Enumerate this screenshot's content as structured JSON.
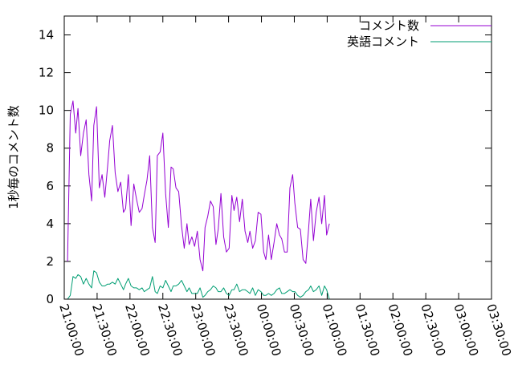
{
  "chart_data": {
    "type": "line",
    "title": "",
    "xlabel": "",
    "ylabel": "1秒毎のコメント数",
    "grid": false,
    "legend_position": "top-right",
    "x_start": "21:00:00",
    "x_end": "03:30:00",
    "xlim": [
      "21:00:00",
      "03:30:00"
    ],
    "ylim": [
      0,
      15
    ],
    "x_ticks": [
      "21:00:00",
      "21:30:00",
      "22:00:00",
      "22:30:00",
      "23:00:00",
      "23:30:00",
      "00:00:00",
      "00:30:00",
      "01:00:00",
      "01:30:00",
      "02:00:00",
      "02:30:00",
      "03:00:00",
      "03:30:00"
    ],
    "y_ticks": [
      "0",
      "2",
      "4",
      "6",
      "8",
      "10",
      "12",
      "14"
    ],
    "y_tick_values": [
      0,
      2,
      4,
      6,
      8,
      10,
      12,
      14
    ],
    "series": [
      {
        "name": "コメント数",
        "color": "#9400d3",
        "points": [
          [
            "21:03:00",
            2.0
          ],
          [
            "21:05:30",
            9.8
          ],
          [
            "21:08:00",
            10.5
          ],
          [
            "21:10:30",
            8.8
          ],
          [
            "21:12:30",
            10.1
          ],
          [
            "21:15:00",
            7.6
          ],
          [
            "21:17:30",
            8.8
          ],
          [
            "21:20:00",
            9.5
          ],
          [
            "21:22:30",
            6.6
          ],
          [
            "21:25:00",
            5.2
          ],
          [
            "21:27:00",
            9.2
          ],
          [
            "21:29:30",
            10.2
          ],
          [
            "21:32:00",
            5.9
          ],
          [
            "21:34:30",
            6.6
          ],
          [
            "21:37:00",
            5.4
          ],
          [
            "21:39:30",
            7.0
          ],
          [
            "21:41:30",
            8.4
          ],
          [
            "21:44:00",
            9.2
          ],
          [
            "21:46:30",
            6.7
          ],
          [
            "21:49:00",
            5.7
          ],
          [
            "21:51:30",
            6.2
          ],
          [
            "21:54:00",
            4.6
          ],
          [
            "21:56:00",
            4.8
          ],
          [
            "21:58:30",
            6.6
          ],
          [
            "22:01:00",
            3.9
          ],
          [
            "22:03:30",
            6.1
          ],
          [
            "22:06:00",
            5.3
          ],
          [
            "22:08:30",
            4.6
          ],
          [
            "22:11:00",
            4.8
          ],
          [
            "22:13:00",
            5.5
          ],
          [
            "22:15:30",
            6.3
          ],
          [
            "22:18:00",
            7.6
          ],
          [
            "22:20:30",
            3.8
          ],
          [
            "22:23:00",
            3.0
          ],
          [
            "22:25:00",
            7.6
          ],
          [
            "22:27:30",
            7.8
          ],
          [
            "22:30:00",
            8.8
          ],
          [
            "22:32:30",
            5.6
          ],
          [
            "22:35:00",
            3.8
          ],
          [
            "22:37:30",
            7.0
          ],
          [
            "22:39:30",
            6.9
          ],
          [
            "22:42:00",
            5.9
          ],
          [
            "22:44:30",
            5.7
          ],
          [
            "22:47:00",
            3.9
          ],
          [
            "22:49:30",
            2.7
          ],
          [
            "22:52:00",
            4.0
          ],
          [
            "22:54:00",
            2.9
          ],
          [
            "22:56:30",
            3.3
          ],
          [
            "22:59:00",
            2.8
          ],
          [
            "23:01:30",
            3.6
          ],
          [
            "23:04:00",
            2.1
          ],
          [
            "23:06:30",
            1.5
          ],
          [
            "23:08:30",
            3.8
          ],
          [
            "23:11:00",
            4.4
          ],
          [
            "23:13:30",
            5.2
          ],
          [
            "23:16:00",
            4.9
          ],
          [
            "23:18:30",
            2.9
          ],
          [
            "23:20:30",
            3.7
          ],
          [
            "23:23:00",
            5.6
          ],
          [
            "23:25:30",
            3.3
          ],
          [
            "23:28:00",
            2.5
          ],
          [
            "23:30:30",
            2.7
          ],
          [
            "23:33:00",
            5.5
          ],
          [
            "23:35:00",
            4.7
          ],
          [
            "23:37:30",
            5.4
          ],
          [
            "23:40:00",
            4.1
          ],
          [
            "23:42:30",
            5.3
          ],
          [
            "23:45:00",
            3.6
          ],
          [
            "23:47:30",
            3.0
          ],
          [
            "23:49:30",
            3.6
          ],
          [
            "23:52:00",
            2.7
          ],
          [
            "23:54:30",
            3.1
          ],
          [
            "23:57:00",
            4.6
          ],
          [
            "23:59:30",
            4.5
          ],
          [
            "00:02:00",
            2.5
          ],
          [
            "00:04:00",
            2.1
          ],
          [
            "00:06:30",
            3.4
          ],
          [
            "00:09:00",
            2.1
          ],
          [
            "00:11:30",
            3.0
          ],
          [
            "00:14:00",
            4.0
          ],
          [
            "00:16:30",
            3.4
          ],
          [
            "00:18:30",
            3.2
          ],
          [
            "00:21:00",
            2.5
          ],
          [
            "00:23:30",
            2.5
          ],
          [
            "00:26:00",
            5.9
          ],
          [
            "00:28:30",
            6.6
          ],
          [
            "00:30:30",
            5.1
          ],
          [
            "00:33:00",
            3.8
          ],
          [
            "00:35:30",
            3.7
          ],
          [
            "00:38:00",
            2.1
          ],
          [
            "00:40:30",
            1.9
          ],
          [
            "00:43:00",
            3.7
          ],
          [
            "00:45:00",
            5.3
          ],
          [
            "00:47:30",
            3.1
          ],
          [
            "00:50:00",
            4.6
          ],
          [
            "00:52:30",
            5.4
          ],
          [
            "00:55:00",
            4.0
          ],
          [
            "00:57:30",
            5.5
          ],
          [
            "00:59:30",
            3.4
          ],
          [
            "01:02:00",
            4.0
          ]
        ]
      },
      {
        "name": "英語コメント",
        "color": "#009e73",
        "points": [
          [
            "21:03:00",
            0.0
          ],
          [
            "21:05:30",
            0.2
          ],
          [
            "21:08:00",
            1.2
          ],
          [
            "21:10:30",
            1.1
          ],
          [
            "21:12:30",
            1.3
          ],
          [
            "21:15:00",
            1.2
          ],
          [
            "21:17:30",
            0.8
          ],
          [
            "21:20:00",
            1.1
          ],
          [
            "21:22:30",
            0.8
          ],
          [
            "21:25:00",
            0.6
          ],
          [
            "21:27:00",
            1.5
          ],
          [
            "21:29:30",
            1.4
          ],
          [
            "21:32:00",
            0.9
          ],
          [
            "21:34:30",
            0.7
          ],
          [
            "21:37:00",
            0.7
          ],
          [
            "21:39:30",
            0.8
          ],
          [
            "21:41:30",
            0.8
          ],
          [
            "21:44:00",
            0.9
          ],
          [
            "21:46:30",
            0.8
          ],
          [
            "21:49:00",
            1.1
          ],
          [
            "21:51:30",
            0.8
          ],
          [
            "21:54:00",
            0.5
          ],
          [
            "21:56:00",
            0.8
          ],
          [
            "21:58:30",
            1.1
          ],
          [
            "22:01:00",
            0.7
          ],
          [
            "22:03:30",
            0.6
          ],
          [
            "22:06:00",
            0.6
          ],
          [
            "22:08:30",
            0.5
          ],
          [
            "22:11:00",
            0.6
          ],
          [
            "22:13:00",
            0.4
          ],
          [
            "22:15:30",
            0.5
          ],
          [
            "22:18:00",
            0.6
          ],
          [
            "22:20:30",
            1.2
          ],
          [
            "22:23:00",
            0.4
          ],
          [
            "22:25:00",
            0.3
          ],
          [
            "22:27:30",
            0.7
          ],
          [
            "22:30:00",
            0.6
          ],
          [
            "22:32:30",
            1.0
          ],
          [
            "22:35:00",
            0.7
          ],
          [
            "22:37:30",
            0.4
          ],
          [
            "22:39:30",
            0.7
          ],
          [
            "22:42:00",
            0.7
          ],
          [
            "22:44:30",
            0.8
          ],
          [
            "22:47:00",
            1.0
          ],
          [
            "22:49:30",
            0.7
          ],
          [
            "22:52:00",
            0.4
          ],
          [
            "22:54:00",
            0.6
          ],
          [
            "22:56:30",
            0.3
          ],
          [
            "22:59:00",
            0.3
          ],
          [
            "23:01:30",
            0.3
          ],
          [
            "23:04:00",
            0.6
          ],
          [
            "23:06:30",
            0.1
          ],
          [
            "23:08:30",
            0.2
          ],
          [
            "23:11:00",
            0.4
          ],
          [
            "23:13:30",
            0.5
          ],
          [
            "23:16:00",
            0.7
          ],
          [
            "23:18:30",
            0.6
          ],
          [
            "23:20:30",
            0.4
          ],
          [
            "23:23:00",
            0.4
          ],
          [
            "23:25:30",
            0.6
          ],
          [
            "23:28:00",
            0.3
          ],
          [
            "23:30:30",
            0.2
          ],
          [
            "23:33:00",
            0.5
          ],
          [
            "23:35:00",
            0.5
          ],
          [
            "23:37:30",
            0.8
          ],
          [
            "23:40:00",
            0.4
          ],
          [
            "23:42:30",
            0.5
          ],
          [
            "23:45:00",
            0.5
          ],
          [
            "23:47:30",
            0.4
          ],
          [
            "23:49:30",
            0.3
          ],
          [
            "23:52:00",
            0.6
          ],
          [
            "23:54:30",
            0.2
          ],
          [
            "23:57:00",
            0.5
          ],
          [
            "23:59:30",
            0.4
          ],
          [
            "00:02:00",
            0.2
          ],
          [
            "00:04:00",
            0.2
          ],
          [
            "00:06:30",
            0.3
          ],
          [
            "00:09:00",
            0.2
          ],
          [
            "00:11:30",
            0.3
          ],
          [
            "00:14:00",
            0.5
          ],
          [
            "00:16:30",
            0.6
          ],
          [
            "00:18:30",
            0.3
          ],
          [
            "00:21:00",
            0.3
          ],
          [
            "00:23:30",
            0.4
          ],
          [
            "00:26:00",
            0.5
          ],
          [
            "00:28:30",
            0.4
          ],
          [
            "00:30:30",
            0.4
          ],
          [
            "00:33:00",
            0.2
          ],
          [
            "00:35:30",
            0.1
          ],
          [
            "00:38:00",
            0.2
          ],
          [
            "00:40:30",
            0.4
          ],
          [
            "00:43:00",
            0.5
          ],
          [
            "00:45:00",
            0.7
          ],
          [
            "00:47:30",
            0.4
          ],
          [
            "00:50:00",
            0.5
          ],
          [
            "00:52:30",
            0.7
          ],
          [
            "00:55:00",
            0.2
          ],
          [
            "00:57:30",
            0.7
          ],
          [
            "00:59:30",
            0.5
          ],
          [
            "01:02:00",
            0.0
          ]
        ]
      }
    ]
  }
}
